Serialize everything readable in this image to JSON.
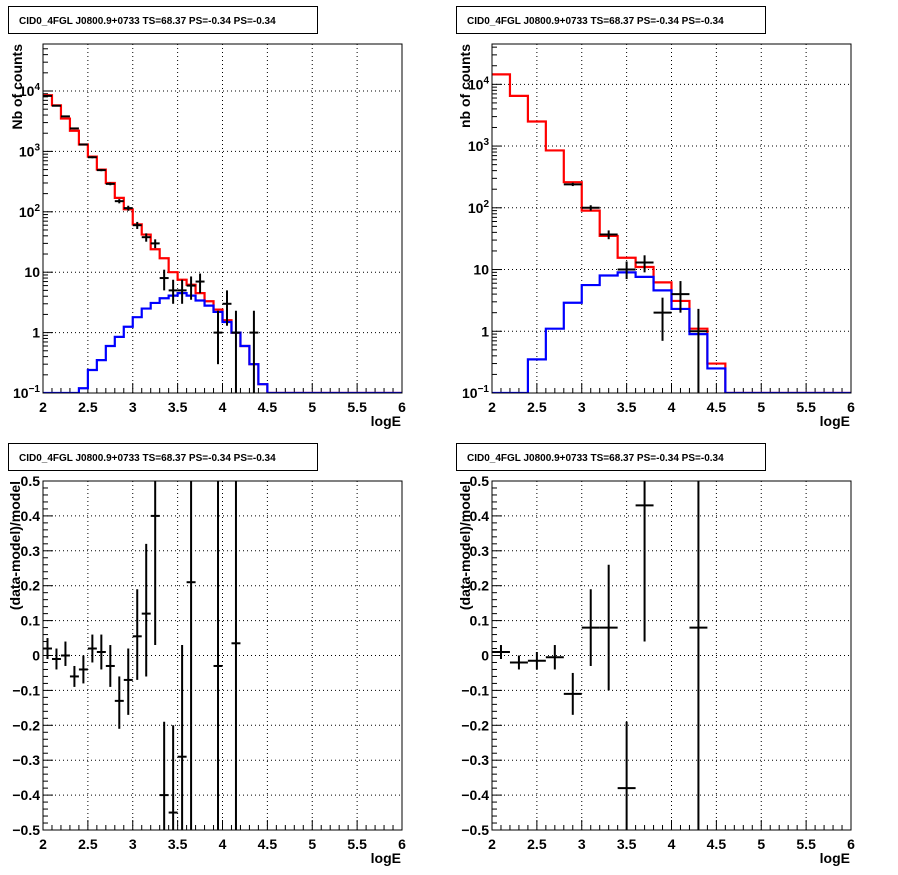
{
  "chart_data": [
    {
      "type": "line",
      "panel": "top-left",
      "title": "CID0_4FGL J0800.9+0733 TS=68.37 PS=-0.34 PS=-0.34",
      "xlabel": "logE",
      "ylabel": "Nb of counts",
      "xlim": [
        2,
        6
      ],
      "ylim": [
        0.1,
        60000
      ],
      "ylog": true,
      "grid": true,
      "xticks": [
        "2",
        "2.5",
        "3",
        "3.5",
        "4",
        "4.5",
        "5",
        "5.5",
        "6"
      ],
      "yticks": [
        {
          "v": 0.1,
          "base": "10",
          "exp": "−1"
        },
        {
          "v": 1,
          "label": "1"
        },
        {
          "v": 10,
          "label": "10"
        },
        {
          "v": 100,
          "base": "10",
          "exp": "2"
        },
        {
          "v": 1000,
          "base": "10",
          "exp": "3"
        },
        {
          "v": 10000,
          "base": "10",
          "exp": "4"
        }
      ],
      "edges": [
        2.0,
        2.1,
        2.2,
        2.3,
        2.4,
        2.5,
        2.6,
        2.7,
        2.8,
        2.9,
        3.0,
        3.1,
        3.2,
        3.3,
        3.4,
        3.5,
        3.6,
        3.7,
        3.8,
        3.9,
        4.0,
        4.1,
        4.2,
        4.3,
        4.4,
        4.5,
        4.6,
        4.7,
        4.8,
        4.9,
        5.0,
        5.1,
        5.2,
        5.3,
        5.4,
        5.5,
        5.6,
        5.7,
        5.8,
        5.9,
        6.0
      ],
      "series": [
        {
          "color": "#ff0000",
          "kind": "histogram",
          "values": [
            8500,
            5800,
            3500,
            2200,
            1300,
            820,
            500,
            300,
            170,
            110,
            62,
            42,
            24,
            17,
            10,
            7.5,
            6.2,
            4.5,
            3.3,
            2.4,
            1.6,
            1.0,
            0.6,
            0.3,
            0.14,
            0.1,
            0.1,
            0.1,
            0.1,
            0.1,
            0.1,
            0.1,
            0.1,
            0.1,
            0.1,
            0.1,
            0.1,
            0.1,
            0.1,
            0.1
          ]
        },
        {
          "color": "#0000ff",
          "kind": "histogram",
          "values": [
            0.1,
            0.1,
            0.1,
            0.1,
            0.12,
            0.24,
            0.35,
            0.6,
            0.85,
            1.25,
            1.8,
            2.5,
            3.1,
            3.7,
            4.1,
            4.5,
            4.1,
            3.4,
            2.8,
            2.2,
            1.5,
            1.0,
            0.6,
            0.3,
            0.14,
            0.1,
            0.1,
            0.1,
            0.1,
            0.1,
            0.1,
            0.1,
            0.1,
            0.1,
            0.1,
            0.1,
            0.1,
            0.1,
            0.1,
            0.1
          ]
        },
        {
          "color": "#000000",
          "kind": "points",
          "x": [
            2.05,
            2.15,
            2.25,
            2.35,
            2.45,
            2.55,
            2.65,
            2.75,
            2.85,
            2.95,
            3.05,
            3.15,
            3.25,
            3.35,
            3.45,
            3.55,
            3.65,
            3.75,
            3.95,
            4.05,
            4.15,
            4.35
          ],
          "y": [
            8300,
            5700,
            3800,
            2400,
            1300,
            800,
            490,
            290,
            150,
            115,
            60,
            38,
            30,
            8,
            5,
            5,
            6,
            7,
            1,
            3,
            1,
            1
          ],
          "ylo": [
            8100,
            5550,
            3700,
            2330,
            1260,
            770,
            470,
            275,
            138,
            104,
            52,
            32,
            25,
            5,
            3,
            3,
            3.5,
            4.5,
            0.3,
            1.3,
            0.1,
            0.1
          ],
          "yhi": [
            8500,
            5850,
            3900,
            2470,
            1340,
            830,
            510,
            305,
            162,
            126,
            68,
            44,
            35,
            11,
            7.5,
            7.5,
            8.5,
            9.5,
            2.3,
            5,
            2.3,
            2.3
          ]
        }
      ]
    },
    {
      "type": "line",
      "panel": "top-right",
      "title": "CID0_4FGL J0800.9+0733 TS=68.37 PS=-0.34 PS=-0.34",
      "xlabel": "logE",
      "ylabel": "nb of counts",
      "xlim": [
        2,
        6
      ],
      "ylim": [
        0.1,
        45000
      ],
      "ylog": true,
      "grid": true,
      "xticks": [
        "2",
        "2.5",
        "3",
        "3.5",
        "4",
        "4.5",
        "5",
        "5.5",
        "6"
      ],
      "yticks": [
        {
          "v": 0.1,
          "base": "10",
          "exp": "−1"
        },
        {
          "v": 1,
          "label": "1"
        },
        {
          "v": 10,
          "label": "10"
        },
        {
          "v": 100,
          "base": "10",
          "exp": "2"
        },
        {
          "v": 1000,
          "base": "10",
          "exp": "3"
        },
        {
          "v": 10000,
          "base": "10",
          "exp": "4"
        }
      ],
      "edges": [
        2.0,
        2.2,
        2.4,
        2.6,
        2.8,
        3.0,
        3.2,
        3.4,
        3.6,
        3.8,
        4.0,
        4.2,
        4.4,
        4.6,
        4.8,
        5.0,
        5.2,
        5.4,
        5.6,
        5.8,
        6.0
      ],
      "series": [
        {
          "color": "#ff0000",
          "kind": "histogram",
          "values": [
            14500,
            6500,
            2500,
            850,
            260,
            90,
            35,
            15.5,
            11,
            6.2,
            3.1,
            1.1,
            0.3,
            0.1,
            0.1,
            0.1,
            0.1,
            0.1,
            0.1,
            0.1
          ]
        },
        {
          "color": "#0000ff",
          "kind": "histogram",
          "values": [
            0.1,
            0.1,
            0.35,
            1.1,
            2.9,
            5.6,
            8.0,
            9.0,
            7.6,
            4.6,
            2.3,
            0.9,
            0.25,
            0.1,
            0.1,
            0.1,
            0.1,
            0.1,
            0.1,
            0.1
          ]
        },
        {
          "color": "#000000",
          "kind": "points",
          "x": [
            2.9,
            3.1,
            3.3,
            3.5,
            3.7,
            3.9,
            4.1,
            4.3
          ],
          "y": [
            240,
            100,
            37,
            10,
            13,
            2,
            4,
            1
          ],
          "ylo": [
            225,
            90,
            31,
            7,
            9,
            0.7,
            2,
            0.1
          ],
          "yhi": [
            255,
            110,
            43,
            13.5,
            17,
            3.5,
            6.5,
            2.3
          ]
        }
      ]
    },
    {
      "type": "scatter",
      "panel": "bottom-left",
      "title": "CID0_4FGL J0800.9+0733 TS=68.37 PS=-0.34 PS=-0.34",
      "xlabel": "logE",
      "ylabel": "(data-model)/model",
      "xlim": [
        2,
        6
      ],
      "ylim": [
        -0.5,
        0.5
      ],
      "ylog": false,
      "grid": true,
      "xticks": [
        "2",
        "2.5",
        "3",
        "3.5",
        "4",
        "4.5",
        "5",
        "5.5",
        "6"
      ],
      "yticks": [
        {
          "v": -0.5,
          "label": "−0.5"
        },
        {
          "v": -0.4,
          "label": "−0.4"
        },
        {
          "v": -0.3,
          "label": "−0.3"
        },
        {
          "v": -0.2,
          "label": "−0.2"
        },
        {
          "v": -0.1,
          "label": "−0.1"
        },
        {
          "v": 0,
          "label": "0"
        },
        {
          "v": 0.1,
          "label": "0.1"
        },
        {
          "v": 0.2,
          "label": "0.2"
        },
        {
          "v": 0.3,
          "label": "0.3"
        },
        {
          "v": 0.4,
          "label": "0.4"
        },
        {
          "v": 0.5,
          "label": "0.5"
        }
      ],
      "xhalf": 0.05,
      "series": [
        {
          "color": "#000000",
          "kind": "points",
          "x": [
            2.05,
            2.15,
            2.25,
            2.35,
            2.45,
            2.55,
            2.65,
            2.75,
            2.85,
            2.95,
            3.05,
            3.15,
            3.25,
            3.35,
            3.45,
            3.55,
            3.65,
            3.95,
            4.15
          ],
          "y": [
            0.02,
            -0.01,
            0.0,
            -0.06,
            -0.04,
            0.02,
            0.01,
            -0.03,
            -0.13,
            -0.07,
            0.055,
            0.12,
            0.4,
            -0.4,
            -0.45,
            -0.29,
            0.21,
            -0.03,
            0.035
          ],
          "ylo": [
            -0.01,
            -0.04,
            -0.03,
            -0.09,
            -0.08,
            -0.02,
            -0.04,
            -0.09,
            -0.21,
            -0.17,
            -0.07,
            -0.06,
            0.03,
            -0.5,
            -0.5,
            -0.5,
            -0.5,
            -0.5,
            -0.5
          ],
          "yhi": [
            0.05,
            0.02,
            0.04,
            -0.03,
            0.0,
            0.06,
            0.06,
            0.03,
            -0.06,
            0.02,
            0.19,
            0.32,
            0.5,
            -0.19,
            -0.2,
            0.03,
            0.5,
            0.5,
            0.5
          ]
        }
      ]
    },
    {
      "type": "scatter",
      "panel": "bottom-right",
      "title": "CID0_4FGL J0800.9+0733 TS=68.37 PS=-0.34 PS=-0.34",
      "xlabel": "logE",
      "ylabel": "(data-model)/model",
      "xlim": [
        2,
        6
      ],
      "ylim": [
        -0.5,
        0.5
      ],
      "ylog": false,
      "grid": true,
      "xticks": [
        "2",
        "2.5",
        "3",
        "3.5",
        "4",
        "4.5",
        "5",
        "5.5",
        "6"
      ],
      "yticks": [
        {
          "v": -0.5,
          "label": "−0.5"
        },
        {
          "v": -0.4,
          "label": "−0.4"
        },
        {
          "v": -0.3,
          "label": "−0.3"
        },
        {
          "v": -0.2,
          "label": "−0.2"
        },
        {
          "v": -0.1,
          "label": "−0.1"
        },
        {
          "v": 0,
          "label": "0"
        },
        {
          "v": 0.1,
          "label": "0.1"
        },
        {
          "v": 0.2,
          "label": "0.2"
        },
        {
          "v": 0.3,
          "label": "0.3"
        },
        {
          "v": 0.4,
          "label": "0.4"
        },
        {
          "v": 0.5,
          "label": "0.5"
        }
      ],
      "xhalf": 0.1,
      "series": [
        {
          "color": "#000000",
          "kind": "points",
          "x": [
            2.1,
            2.3,
            2.5,
            2.7,
            2.9,
            3.1,
            3.3,
            3.5,
            3.7,
            4.3
          ],
          "y": [
            0.01,
            -0.02,
            -0.015,
            -0.005,
            -0.11,
            0.08,
            0.08,
            -0.38,
            0.43,
            0.08
          ],
          "ylo": [
            -0.01,
            -0.04,
            -0.04,
            -0.04,
            -0.17,
            -0.03,
            -0.1,
            -0.5,
            0.04,
            -0.5
          ],
          "yhi": [
            0.03,
            0.0,
            0.01,
            0.03,
            -0.05,
            0.19,
            0.26,
            -0.19,
            0.5,
            0.5
          ]
        }
      ]
    }
  ]
}
